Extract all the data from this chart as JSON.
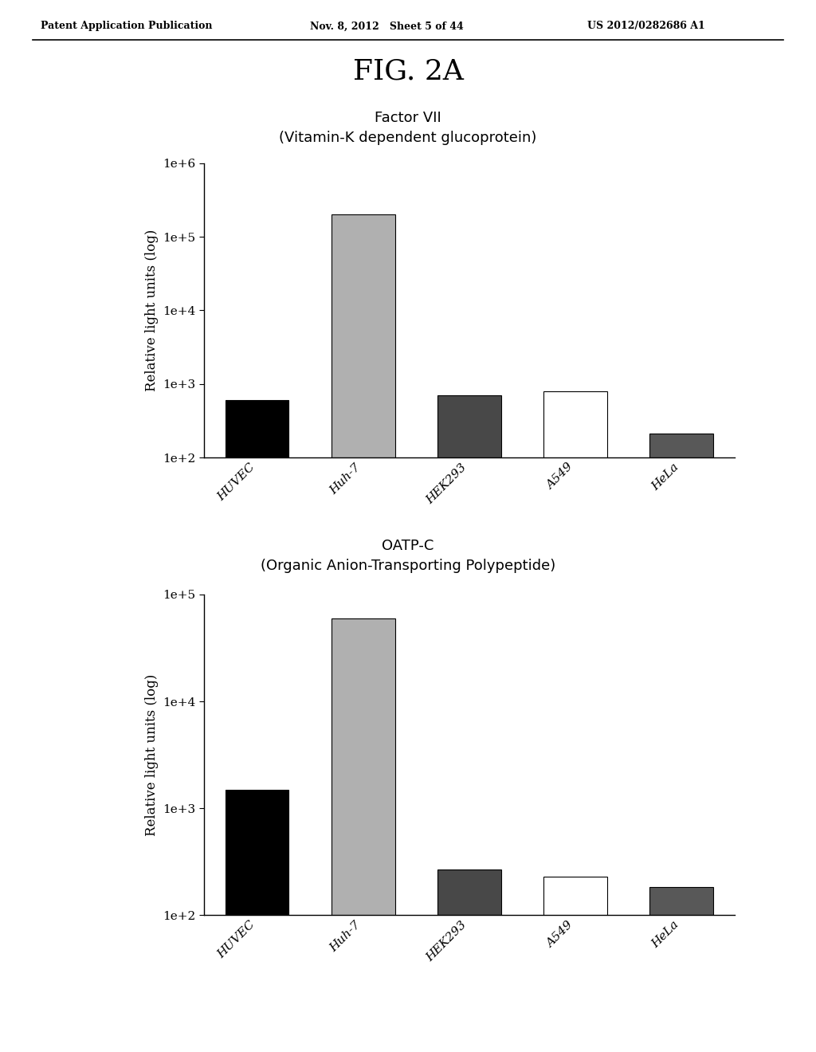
{
  "header_left": "Patent Application Publication",
  "header_center": "Nov. 8, 2012   Sheet 5 of 44",
  "header_right": "US 2012/0282686 A1",
  "fig_label": "FIG. 2A",
  "chart1": {
    "title_line1": "Factor VII",
    "title_line2": "(Vitamin-K dependent glucoprotein)",
    "categories": [
      "HUVEC",
      "Huh-7",
      "HEK293",
      "A549",
      "HeLa"
    ],
    "values": [
      600,
      200000,
      700,
      800,
      210
    ],
    "colors": [
      "#000000",
      "#b0b0b0",
      "#484848",
      "#ffffff",
      "#585858"
    ],
    "edgecolors": [
      "#000000",
      "#000000",
      "#000000",
      "#000000",
      "#000000"
    ],
    "ylabel": "Relative light units (log)",
    "ymin": 100,
    "ymax": 1000000,
    "yticks": [
      100,
      1000,
      10000,
      100000,
      1000000
    ],
    "ytick_labels": [
      "1e+2",
      "1e+3",
      "1e+4",
      "1e+5",
      "1e+6"
    ]
  },
  "chart2": {
    "title_line1": "OATP-C",
    "title_line2": "(Organic Anion-Transporting Polypeptide)",
    "categories": [
      "HUVEC",
      "Huh-7",
      "HEK293",
      "A549",
      "HeLa"
    ],
    "values": [
      1500,
      60000,
      270,
      230,
      185
    ],
    "colors": [
      "#000000",
      "#b0b0b0",
      "#484848",
      "#ffffff",
      "#585858"
    ],
    "edgecolors": [
      "#000000",
      "#000000",
      "#000000",
      "#000000",
      "#000000"
    ],
    "ylabel": "Relative light units (log)",
    "ymin": 100,
    "ymax": 100000,
    "yticks": [
      100,
      1000,
      10000,
      100000
    ],
    "ytick_labels": [
      "1e+2",
      "1e+3",
      "1e+4",
      "1e+5"
    ]
  },
  "background_color": "#ffffff",
  "fig_label_fontsize": 26,
  "chart_title_fontsize": 13,
  "axis_label_fontsize": 12,
  "tick_label_fontsize": 11,
  "header_fontsize": 9,
  "bar_width": 0.6
}
